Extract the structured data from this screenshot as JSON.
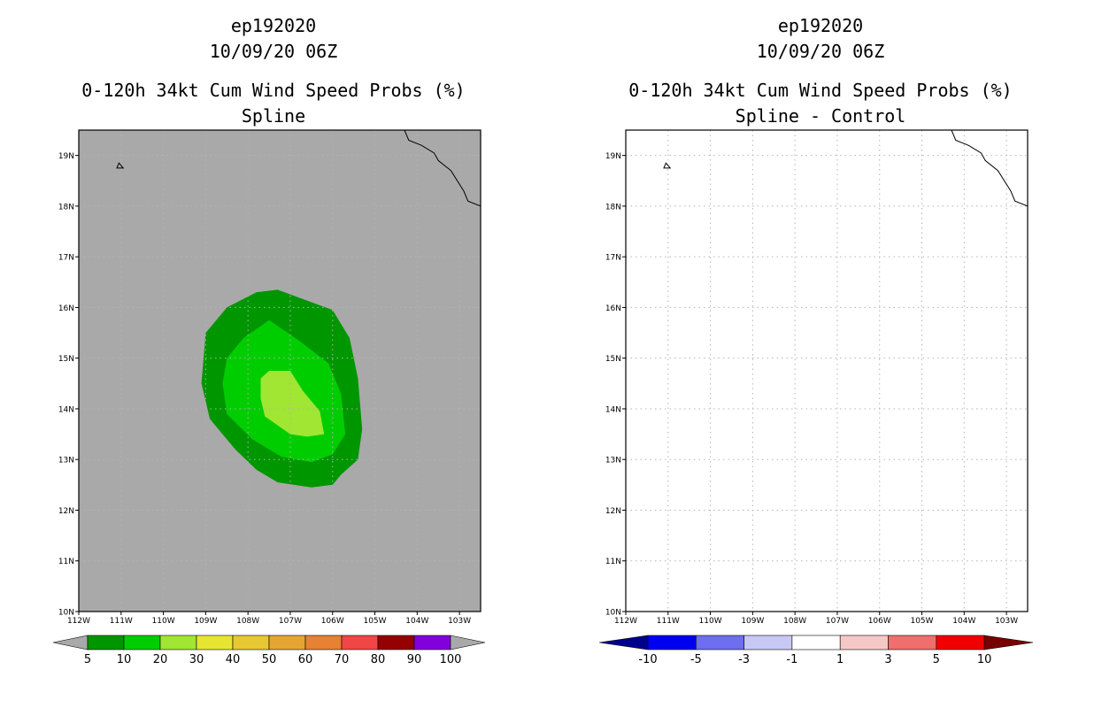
{
  "left_panel": {
    "title_lines": [
      "ep192020",
      "10/09/20 06Z",
      "0-120h 34kt Cum Wind Speed Probs (%)",
      "Spline"
    ]
  },
  "right_panel": {
    "title_lines": [
      "ep192020",
      "10/09/20 06Z",
      "0-120h 34kt Cum Wind Speed Probs (%)",
      "Spline - Control"
    ]
  },
  "chart_data": [
    {
      "type": "heatmap",
      "title": "0-120h 34kt Cum Wind Speed Probs (%)",
      "subtitle": "Spline",
      "storm": "ep192020",
      "time": "10/09/20 06Z",
      "xlim": [
        -112,
        -102.5
      ],
      "ylim": [
        10,
        19.5
      ],
      "x_ticks": [
        -112,
        -111,
        -110,
        -109,
        -108,
        -107,
        -106,
        -105,
        -104,
        -103
      ],
      "x_tick_labels": [
        "112W",
        "111W",
        "110W",
        "109W",
        "108W",
        "107W",
        "106W",
        "105W",
        "104W",
        "103W"
      ],
      "y_ticks": [
        10,
        11,
        12,
        13,
        14,
        15,
        16,
        17,
        18,
        19
      ],
      "y_tick_labels": [
        "10N",
        "11N",
        "12N",
        "13N",
        "14N",
        "15N",
        "16N",
        "17N",
        "18N",
        "19N"
      ],
      "grid": true,
      "background_color": "#a9a9a9",
      "contours": [
        {
          "level": "5-10",
          "color": "#009600",
          "points": [
            [
              -107.3,
              16.35
            ],
            [
              -106.0,
              15.95
            ],
            [
              -105.6,
              15.4
            ],
            [
              -105.4,
              14.6
            ],
            [
              -105.3,
              13.6
            ],
            [
              -105.4,
              13.0
            ],
            [
              -105.8,
              12.7
            ],
            [
              -106.0,
              12.5
            ],
            [
              -106.5,
              12.45
            ],
            [
              -107.3,
              12.55
            ],
            [
              -107.8,
              12.8
            ],
            [
              -108.3,
              13.2
            ],
            [
              -108.9,
              13.8
            ],
            [
              -109.1,
              14.5
            ],
            [
              -109.0,
              15.5
            ],
            [
              -108.5,
              16.0
            ],
            [
              -107.8,
              16.3
            ]
          ]
        },
        {
          "level": "10-20",
          "color": "#00cd00",
          "points": [
            [
              -107.5,
              15.75
            ],
            [
              -106.8,
              15.35
            ],
            [
              -106.1,
              14.9
            ],
            [
              -105.8,
              14.3
            ],
            [
              -105.7,
              13.5
            ],
            [
              -106.0,
              13.1
            ],
            [
              -106.5,
              12.95
            ],
            [
              -107.2,
              13.05
            ],
            [
              -107.9,
              13.4
            ],
            [
              -108.5,
              13.9
            ],
            [
              -108.6,
              14.5
            ],
            [
              -108.5,
              15.0
            ],
            [
              -108.1,
              15.4
            ]
          ]
        },
        {
          "level": "20-30",
          "color": "#a0e632",
          "points": [
            [
              -107.5,
              14.75
            ],
            [
              -107.0,
              14.75
            ],
            [
              -106.7,
              14.35
            ],
            [
              -106.3,
              13.95
            ],
            [
              -106.2,
              13.5
            ],
            [
              -106.6,
              13.45
            ],
            [
              -107.0,
              13.5
            ],
            [
              -107.6,
              13.85
            ],
            [
              -107.7,
              14.2
            ],
            [
              -107.7,
              14.6
            ]
          ]
        }
      ],
      "coastline": [
        [
          -104.3,
          19.5
        ],
        [
          -104.2,
          19.3
        ],
        [
          -103.9,
          19.2
        ],
        [
          -103.6,
          19.05
        ],
        [
          -103.5,
          18.9
        ],
        [
          -103.2,
          18.7
        ],
        [
          -102.9,
          18.3
        ],
        [
          -102.8,
          18.1
        ],
        [
          -102.5,
          18.0
        ]
      ],
      "island": [
        [
          -111.05,
          18.85
        ],
        [
          -110.95,
          18.75
        ],
        [
          -111.1,
          18.75
        ]
      ],
      "colorbar": {
        "labels": [
          "5",
          "10",
          "20",
          "30",
          "40",
          "50",
          "60",
          "70",
          "80",
          "90",
          "100"
        ],
        "colors": [
          "#009600",
          "#00cd00",
          "#a0e632",
          "#e6e632",
          "#e6c832",
          "#e6a532",
          "#e68232",
          "#f04646",
          "#960000",
          "#8200dc"
        ],
        "under_color": "#a9a9a9",
        "over_color": "#a9a9a9"
      }
    },
    {
      "type": "heatmap",
      "title": "0-120h 34kt Cum Wind Speed Probs (%)",
      "subtitle": "Spline - Control",
      "storm": "ep192020",
      "time": "10/09/20 06Z",
      "xlim": [
        -112,
        -102.5
      ],
      "ylim": [
        10,
        19.5
      ],
      "x_ticks": [
        -112,
        -111,
        -110,
        -109,
        -108,
        -107,
        -106,
        -105,
        -104,
        -103
      ],
      "x_tick_labels": [
        "112W",
        "111W",
        "110W",
        "109W",
        "108W",
        "107W",
        "106W",
        "105W",
        "104W",
        "103W"
      ],
      "y_ticks": [
        10,
        11,
        12,
        13,
        14,
        15,
        16,
        17,
        18,
        19
      ],
      "y_tick_labels": [
        "10N",
        "11N",
        "12N",
        "13N",
        "14N",
        "15N",
        "16N",
        "17N",
        "18N",
        "19N"
      ],
      "grid": true,
      "background_color": "#ffffff",
      "contours": [],
      "coastline": [
        [
          -104.3,
          19.5
        ],
        [
          -104.2,
          19.3
        ],
        [
          -103.9,
          19.2
        ],
        [
          -103.6,
          19.05
        ],
        [
          -103.5,
          18.9
        ],
        [
          -103.2,
          18.7
        ],
        [
          -102.9,
          18.3
        ],
        [
          -102.8,
          18.1
        ],
        [
          -102.5,
          18.0
        ]
      ],
      "island": [
        [
          -111.05,
          18.85
        ],
        [
          -110.95,
          18.75
        ],
        [
          -111.1,
          18.75
        ]
      ],
      "colorbar": {
        "labels": [
          "-10",
          "-5",
          "-3",
          "-1",
          "1",
          "3",
          "5",
          "10"
        ],
        "colors": [
          "#0000f0",
          "#6e6ef0",
          "#c8c8f5",
          "#ffffff",
          "#f5c8c8",
          "#f06e6e",
          "#f00000"
        ],
        "under_color": "#00008c",
        "over_color": "#780000"
      }
    }
  ]
}
